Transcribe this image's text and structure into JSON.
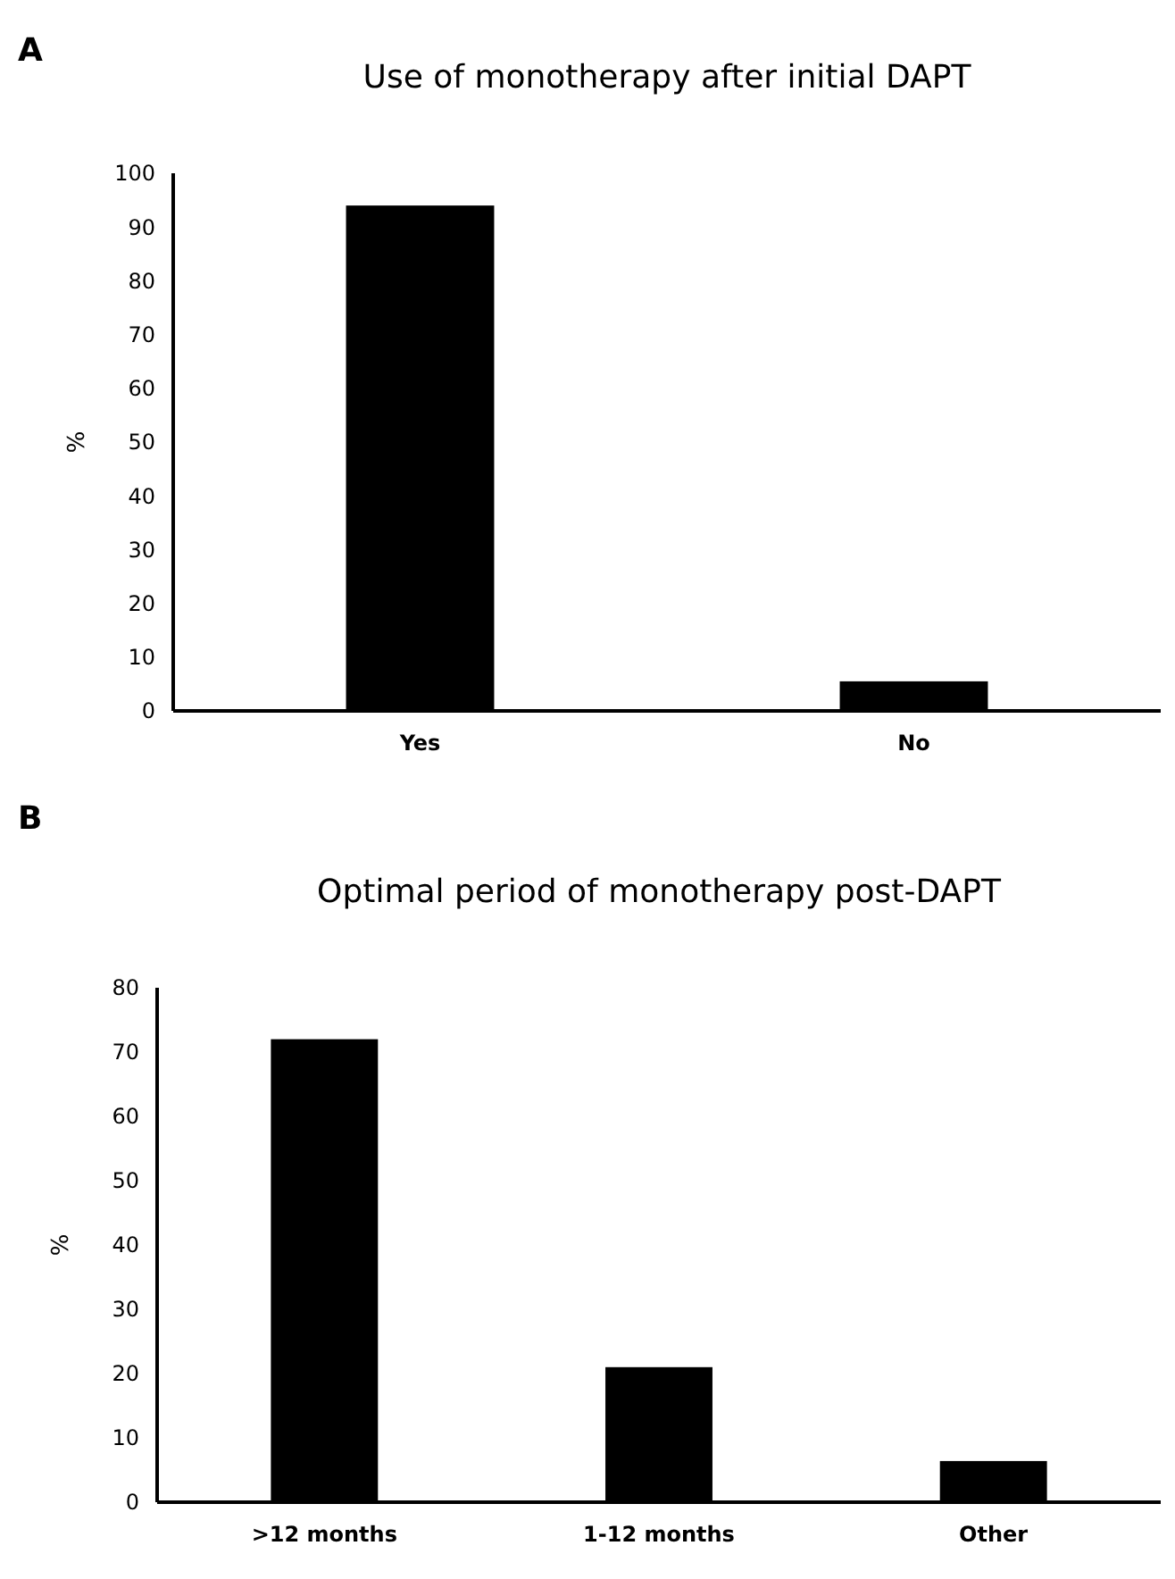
{
  "chart_data": [
    {
      "type": "bar",
      "title": "Use of monotherapy after initial DAPT",
      "ylabel": "%",
      "categories": [
        "Yes",
        "No"
      ],
      "values": [
        94,
        5.5
      ],
      "color": "#000000",
      "ylim": [
        0,
        100
      ],
      "yticks": [
        0,
        10,
        20,
        30,
        40,
        50,
        60,
        70,
        80,
        90,
        100
      ],
      "grid": false,
      "annotations": [
        "A"
      ]
    },
    {
      "type": "bar",
      "title": "Optimal period of monotherapy post-DAPT",
      "ylabel": "%",
      "categories": [
        ">12 months",
        "1-12 months",
        "Other"
      ],
      "values": [
        72,
        21,
        6.4
      ],
      "color": "#000000",
      "ylim": [
        0,
        80
      ],
      "yticks": [
        0,
        10,
        20,
        30,
        40,
        50,
        60,
        70,
        80
      ],
      "grid": false,
      "annotations": [
        "B"
      ]
    }
  ]
}
